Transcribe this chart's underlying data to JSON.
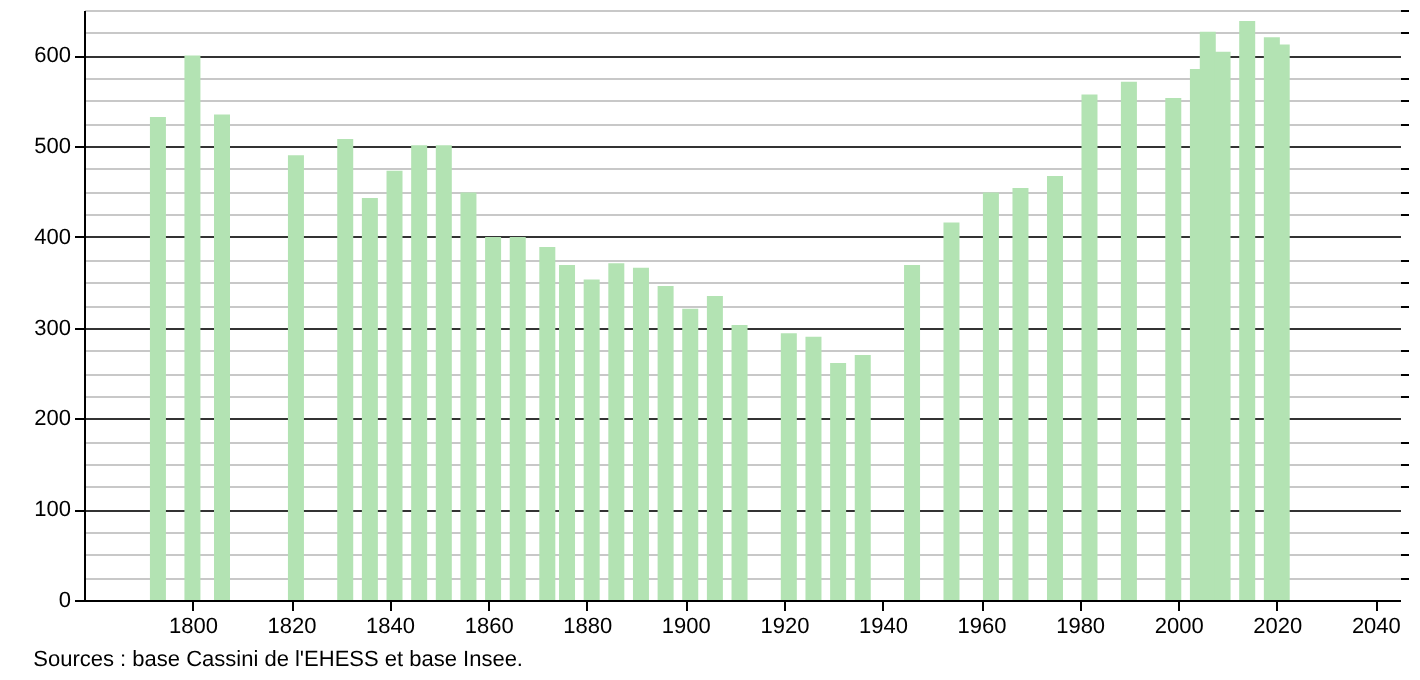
{
  "chart_data": {
    "type": "bar",
    "x": [
      1793,
      1800,
      1806,
      1821,
      1831,
      1836,
      1841,
      1846,
      1851,
      1856,
      1861,
      1866,
      1872,
      1876,
      1881,
      1886,
      1891,
      1896,
      1901,
      1906,
      1911,
      1921,
      1926,
      1931,
      1936,
      1946,
      1954,
      1962,
      1968,
      1975,
      1982,
      1990,
      1999,
      2004,
      2006,
      2009,
      2014,
      2019,
      2021
    ],
    "series": [
      {
        "color": "#b3e3b3",
        "values": [
          532,
          600,
          535,
          490,
          508,
          443,
          473,
          501,
          501,
          449,
          400,
          400,
          389,
          369,
          353,
          371,
          366,
          346,
          321,
          335,
          303,
          294,
          290,
          261,
          270,
          369,
          416,
          449,
          454,
          467,
          557,
          571,
          553,
          585,
          626,
          604,
          638,
          620,
          612
        ]
      }
    ],
    "xlim": [
      1778,
      2045
    ],
    "xticks": [
      1800,
      1820,
      1840,
      1860,
      1880,
      1900,
      1920,
      1940,
      1960,
      1980,
      2000,
      2020,
      2040
    ],
    "ylim": [
      0,
      650
    ],
    "yticks": [
      0,
      100,
      200,
      300,
      400,
      500,
      600
    ],
    "grid": "y",
    "annotations": [
      "Sources : base Cassini de l'EHESS et base Insee."
    ]
  }
}
